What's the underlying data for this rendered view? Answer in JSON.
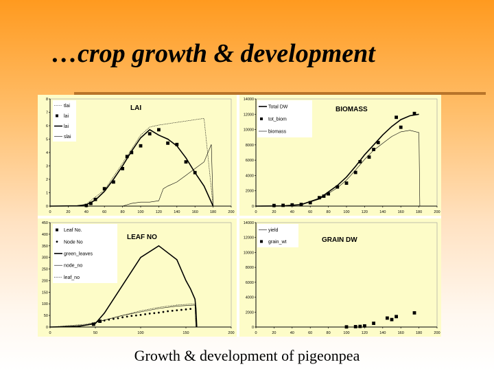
{
  "slide": {
    "title": "…crop growth & development",
    "caption": "Growth & development of pigeonpea"
  },
  "colors": {
    "panel_bg": "#fdfcc8",
    "axis": "#000000",
    "accent_rule": "#b8742a"
  },
  "chart_data": [
    {
      "type": "line",
      "title": "LAI",
      "xlim": [
        0,
        200
      ],
      "ylim": [
        0,
        8
      ],
      "xticks": [
        0,
        20,
        40,
        60,
        80,
        100,
        120,
        140,
        160,
        180,
        200
      ],
      "yticks": [
        0,
        1,
        2,
        3,
        4,
        5,
        6,
        7,
        8
      ],
      "legend": [
        "tlai",
        "lai",
        "lai",
        "slai"
      ],
      "series": [
        {
          "name": "tlai",
          "style": "dotted",
          "x": [
            0,
            30,
            40,
            60,
            80,
            100,
            110,
            120,
            130,
            140,
            150,
            160,
            170,
            180
          ],
          "y": [
            0,
            0.02,
            0.15,
            1.2,
            3.2,
            5.3,
            5.9,
            6.05,
            6.15,
            6.25,
            6.35,
            6.45,
            6.55,
            0
          ]
        },
        {
          "name": "lai",
          "style": "points",
          "x": [
            40,
            45,
            50,
            60,
            70,
            80,
            85,
            90,
            100,
            110,
            120,
            130,
            140,
            150,
            160
          ],
          "y": [
            0.05,
            0.2,
            0.5,
            1.3,
            1.8,
            2.8,
            3.7,
            4.0,
            4.5,
            5.4,
            5.7,
            4.7,
            4.6,
            3.3,
            2.5
          ]
        },
        {
          "name": "lai",
          "style": "solid",
          "x": [
            0,
            30,
            40,
            50,
            60,
            70,
            80,
            90,
            100,
            110,
            120,
            130,
            140,
            150,
            160,
            170,
            180
          ],
          "y": [
            0,
            0.02,
            0.1,
            0.45,
            1.1,
            2.0,
            3.0,
            4.1,
            5.1,
            5.7,
            5.3,
            5.0,
            4.5,
            3.6,
            2.5,
            1.5,
            0
          ]
        },
        {
          "name": "slai",
          "style": "thin",
          "x": [
            0,
            80,
            90,
            100,
            110,
            120,
            125,
            130,
            140,
            150,
            160,
            170,
            178,
            180
          ],
          "y": [
            0,
            0,
            0.2,
            0.3,
            0.3,
            0.4,
            1.3,
            1.5,
            1.8,
            2.3,
            2.8,
            3.3,
            4.6,
            0
          ]
        }
      ]
    },
    {
      "type": "line",
      "title": "BIOMASS",
      "xlim": [
        0,
        200
      ],
      "ylim": [
        0,
        14000
      ],
      "xticks": [
        0,
        20,
        40,
        60,
        80,
        100,
        120,
        140,
        160,
        180,
        200
      ],
      "yticks": [
        0,
        2000,
        4000,
        6000,
        8000,
        10000,
        12000,
        14000
      ],
      "legend": [
        "Total DW",
        "tot_biom",
        "biomass"
      ],
      "series": [
        {
          "name": "Total DW",
          "style": "solid",
          "x": [
            0,
            30,
            50,
            70,
            90,
            100,
            110,
            120,
            130,
            140,
            150,
            160,
            170,
            180
          ],
          "y": [
            0,
            30,
            200,
            1000,
            2700,
            3800,
            5200,
            6700,
            8000,
            9300,
            10400,
            11300,
            11800,
            12000
          ]
        },
        {
          "name": "tot_biom",
          "style": "points",
          "x": [
            20,
            30,
            40,
            50,
            60,
            70,
            75,
            80,
            90,
            100,
            110,
            115,
            125,
            130,
            135,
            155,
            160,
            175
          ],
          "y": [
            80,
            100,
            160,
            220,
            450,
            1100,
            1300,
            1600,
            2500,
            3000,
            4400,
            5800,
            6400,
            7400,
            8300,
            11600,
            10300,
            12100
          ]
        },
        {
          "name": "biomass",
          "style": "thin",
          "x": [
            0,
            30,
            50,
            70,
            90,
            100,
            110,
            120,
            130,
            140,
            150,
            160,
            170,
            180,
            181
          ],
          "y": [
            0,
            20,
            180,
            900,
            2400,
            3400,
            4700,
            6100,
            7300,
            8200,
            9100,
            9700,
            9900,
            9600,
            0
          ]
        }
      ]
    },
    {
      "type": "line",
      "title": "LEAF NO",
      "xlim": [
        0,
        200
      ],
      "ylim": [
        0,
        450
      ],
      "xticks": [
        0,
        50,
        100,
        150,
        200
      ],
      "yticks": [
        0,
        50,
        100,
        150,
        200,
        250,
        300,
        350,
        400,
        450
      ],
      "legend": [
        "Leaf No.",
        "Node No",
        "green_leaves",
        "node_no",
        "leaf_no"
      ],
      "series": [
        {
          "name": "Leaf No.",
          "style": "points",
          "x": [
            48,
            55
          ],
          "y": [
            12,
            25
          ]
        },
        {
          "name": "Node No",
          "style": "dots",
          "x": [
            60,
            65,
            70,
            75,
            80,
            85,
            90,
            95,
            100,
            105,
            110,
            115,
            120,
            125,
            130,
            135,
            140,
            145,
            150,
            155
          ],
          "y": [
            28,
            32,
            35,
            38,
            42,
            45,
            48,
            50,
            52,
            55,
            58,
            60,
            62,
            65,
            68,
            70,
            72,
            74,
            76,
            78
          ]
        },
        {
          "name": "green_leaves",
          "style": "solid",
          "x": [
            0,
            30,
            50,
            60,
            80,
            100,
            120,
            140,
            150,
            155,
            160,
            161,
            162
          ],
          "y": [
            0,
            2,
            15,
            60,
            180,
            300,
            350,
            290,
            200,
            165,
            120,
            80,
            0
          ]
        },
        {
          "name": "node_no",
          "style": "thin",
          "x": [
            0,
            40,
            60,
            80,
            100,
            120,
            140,
            160,
            161
          ],
          "y": [
            0,
            8,
            30,
            50,
            65,
            80,
            90,
            95,
            0
          ]
        },
        {
          "name": "leaf_no",
          "style": "dotted",
          "x": [
            0,
            40,
            60,
            80,
            100,
            120,
            140,
            160,
            161
          ],
          "y": [
            0,
            12,
            30,
            50,
            70,
            85,
            95,
            100,
            0
          ]
        }
      ]
    },
    {
      "type": "line",
      "title": "GRAIN DW",
      "xlim": [
        0,
        200
      ],
      "ylim": [
        0,
        14000
      ],
      "xticks": [
        0,
        20,
        40,
        60,
        80,
        100,
        120,
        140,
        160,
        180,
        200
      ],
      "yticks": [
        0,
        2000,
        4000,
        6000,
        8000,
        10000,
        12000,
        14000
      ],
      "legend": [
        "yield",
        "grain_wt"
      ],
      "series": [
        {
          "name": "yield",
          "style": "thin",
          "x": [
            0,
            200
          ],
          "y": [
            0,
            0
          ]
        },
        {
          "name": "grain_wt",
          "style": "points",
          "x": [
            100,
            110,
            115,
            120,
            130,
            145,
            150,
            155,
            175
          ],
          "y": [
            20,
            50,
            80,
            150,
            500,
            1200,
            1000,
            1400,
            1900
          ]
        }
      ]
    }
  ]
}
